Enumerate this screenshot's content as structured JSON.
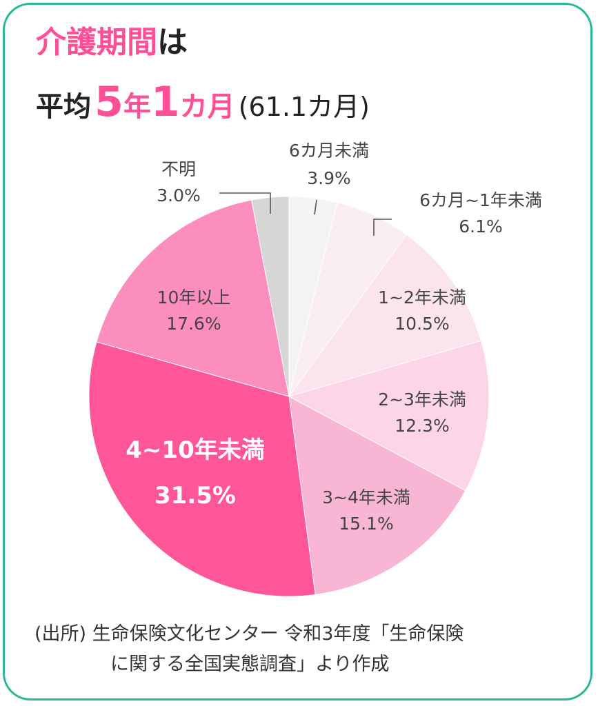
{
  "title": {
    "line1_highlight": "介護期間",
    "line1_suffix": "は",
    "line2_prefix": "平均",
    "avg_years": "5",
    "year_unit": "年",
    "avg_months": "1",
    "month_unit": "カ月",
    "paren_text": "(61.1カ月)"
  },
  "chart_data": {
    "type": "pie",
    "title": "介護期間は平均5年1カ月(61.1カ月)",
    "start": "12 o'clock, clockwise",
    "slices": [
      {
        "name": "6カ月未満",
        "value": 3.9,
        "value_label": "3.9%",
        "color": "#f4f4f4"
      },
      {
        "name": "6カ月~1年未満",
        "value": 6.1,
        "value_label": "6.1%",
        "color": "#fbeef3"
      },
      {
        "name": "1~2年未満",
        "value": 10.5,
        "value_label": "10.5%",
        "color": "#fbe4ee"
      },
      {
        "name": "2~3年未満",
        "value": 12.3,
        "value_label": "12.3%",
        "color": "#fcd5e6"
      },
      {
        "name": "3~4年未満",
        "value": 15.1,
        "value_label": "15.1%",
        "color": "#f9b6d4"
      },
      {
        "name": "4~10年未満",
        "value": 31.5,
        "value_label": "31.5%",
        "color": "#ff5599"
      },
      {
        "name": "10年以上",
        "value": 17.6,
        "value_label": "17.6%",
        "color": "#fb8ebc"
      },
      {
        "name": "不明",
        "value": 3.0,
        "value_label": "3.0%",
        "color": "#d6d6d6"
      }
    ]
  },
  "source": {
    "line1": "(出所) 生命保険文化センター 令和3年度「生命保険",
    "line2": "に関する全国実態調査」より作成"
  },
  "colors": {
    "frame": "#2bb597",
    "accent": "#ff4f96",
    "text": "#333333"
  }
}
